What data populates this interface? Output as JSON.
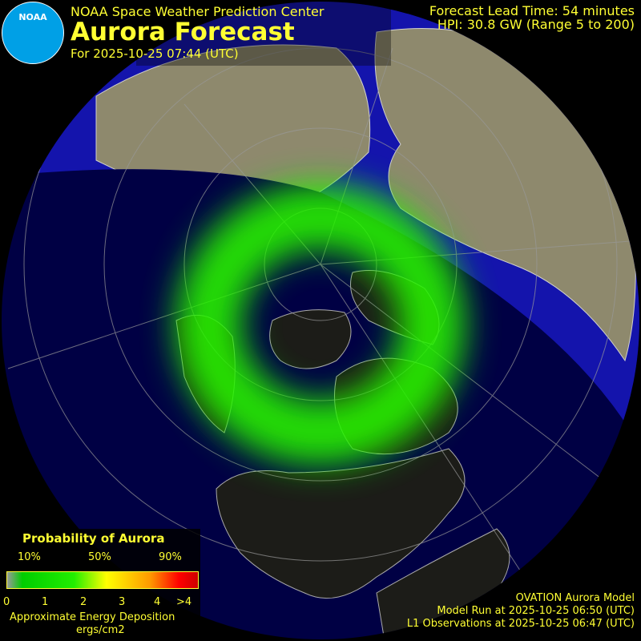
{
  "header": {
    "org": "NOAA Space Weather Prediction Center",
    "title": "Aurora Forecast",
    "date": "For 2025-10-25 07:44 (UTC)",
    "lead_time": "Forecast Lead Time:  54 minutes",
    "hpi": "HPI:  30.8 GW (Range 5 to 200)",
    "logo_text": "NOAA"
  },
  "legend": {
    "title": "Probability of Aurora",
    "prob_ticks": [
      "10%",
      "50%",
      "90%"
    ],
    "energy_ticks": [
      "0",
      "1",
      "2",
      "3",
      "4",
      ">4"
    ],
    "label": "Approximate Energy Deposition",
    "unit": "ergs/cm2",
    "colors": [
      "#999999",
      "#00cc00",
      "#ffff00",
      "#ff9900",
      "#ff0000"
    ]
  },
  "footer": {
    "model": "OVATION Aurora Model",
    "model_run": "Model Run at 2025-10-25 06:50 (UTC)",
    "l1_obs": "L1 Observations at 2025-10-25 06:47 (UTC)"
  },
  "colors": {
    "day_ocean": "#0000a8",
    "night_ocean": "#000040",
    "day_land": "#857f63",
    "night_land": "#1c1c18",
    "aurora": "#22ee00",
    "text": "#ffff33"
  }
}
